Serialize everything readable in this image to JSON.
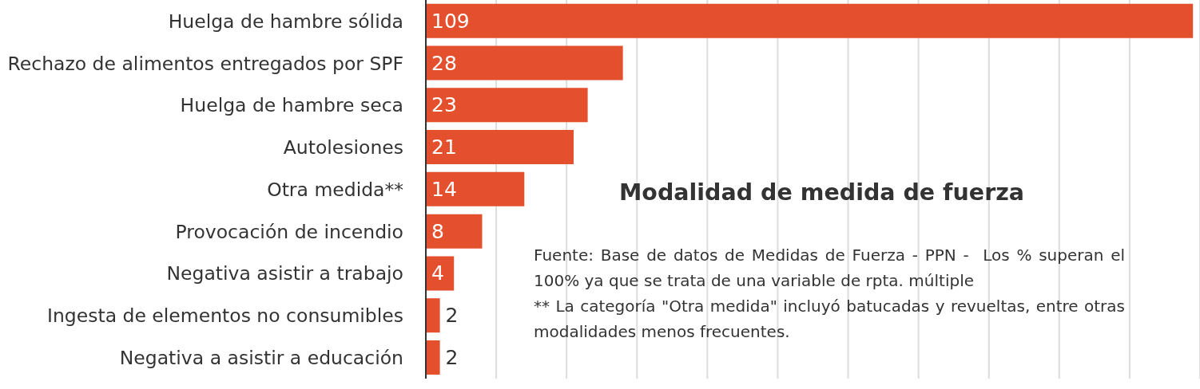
{
  "chart_data": {
    "type": "bar",
    "orientation": "horizontal",
    "title": "Modalidad de medida de fuerza",
    "annotations": [
      "Fuente: Base de datos de Medidas de Fuerza - PPN -  Los % superan el 100% ya que se trata de una variable de rpta. múltiple",
      "** La categoría \"Otra medida\" incluyó batucadas y revueltas, entre otras modalidades menos frecuentes."
    ],
    "categories": [
      "Huelga de hambre sólida",
      "Rechazo de alimentos entregados por SPF",
      "Huelga de hambre seca",
      "Autolesiones",
      "Otra medida**",
      "Provocación de incendio",
      "Negativa asistir a trabajo",
      "Ingesta de elementos no consumibles",
      "Negativa a asistir a educación"
    ],
    "values": [
      109,
      28,
      23,
      21,
      14,
      8,
      4,
      2,
      2
    ],
    "color": "#e4502e",
    "grid": "x",
    "tick_labels": "y",
    "data_labels": true
  }
}
